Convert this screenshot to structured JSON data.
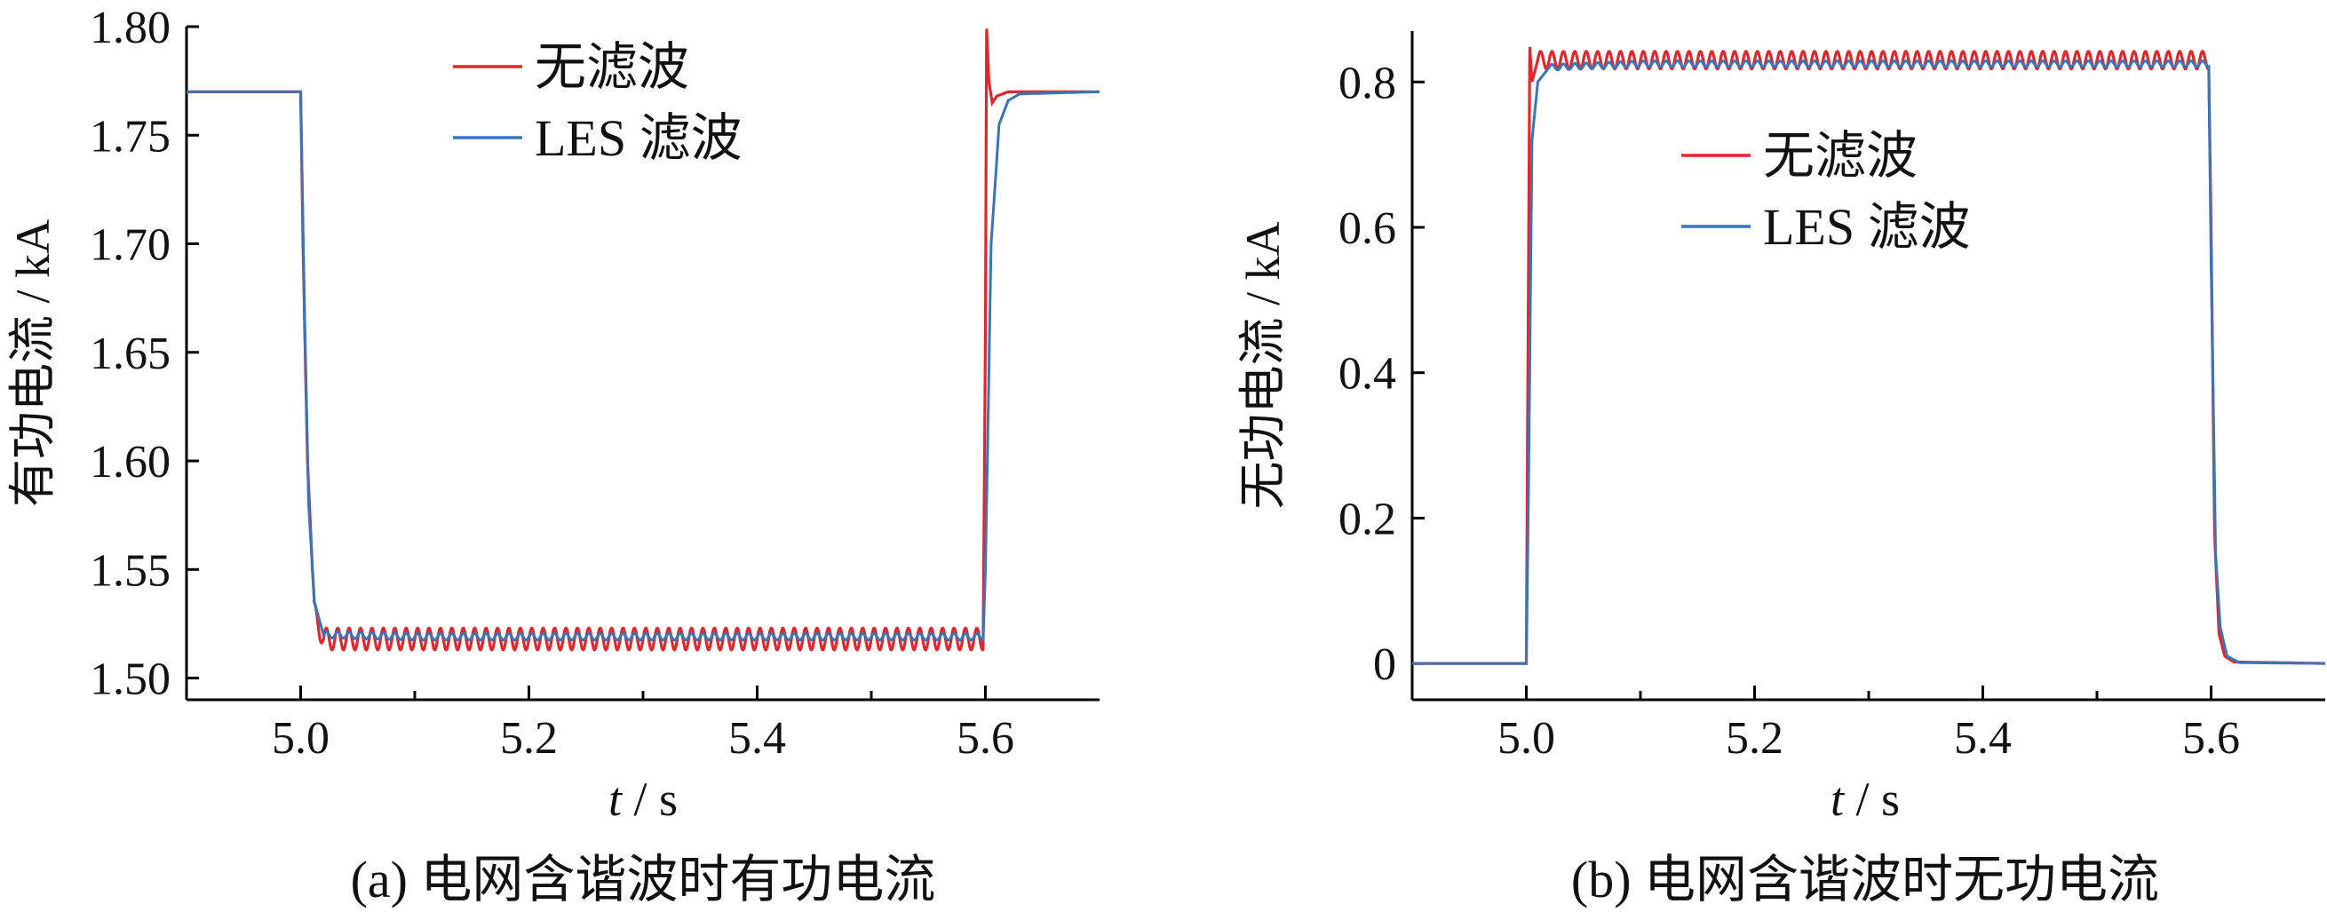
{
  "chart_data": [
    {
      "type": "line",
      "caption": "(a)  电网含谐波时有功电流",
      "xlabel_italic": "t",
      "xlabel_unit": "s",
      "ylabel": "有功电流",
      "ylabel_unit": "kA",
      "xlim": [
        4.9,
        5.7
      ],
      "ylim": [
        1.49,
        1.8
      ],
      "xticks": [
        "5.0",
        "5.2",
        "5.4",
        "5.6"
      ],
      "xtick_values": [
        5.0,
        5.2,
        5.4,
        5.6
      ],
      "yticks": [
        "1.50",
        "1.55",
        "1.60",
        "1.65",
        "1.70",
        "1.75",
        "1.80"
      ],
      "ytick_values": [
        1.5,
        1.55,
        1.6,
        1.65,
        1.7,
        1.75,
        1.8
      ],
      "legend_position": "top-center",
      "series": [
        {
          "name": "无滤波",
          "color": "#e3262b",
          "x": [
            4.9,
            5.0,
            5.002,
            5.006,
            5.012,
            5.02,
            5.1,
            5.2,
            5.3,
            5.4,
            5.5,
            5.598,
            5.6,
            5.601,
            5.603,
            5.606,
            5.61,
            5.62,
            5.7
          ],
          "y": [
            1.77,
            1.77,
            1.7,
            1.6,
            1.53,
            1.518,
            1.518,
            1.518,
            1.518,
            1.518,
            1.518,
            1.518,
            1.66,
            1.8,
            1.775,
            1.765,
            1.768,
            1.77,
            1.77
          ],
          "ripple_amplitude": 0.005,
          "ripple_range": [
            5.01,
            5.6
          ]
        },
        {
          "name": "LES 滤波",
          "color": "#3a75b8",
          "x": [
            4.9,
            5.0,
            5.003,
            5.007,
            5.012,
            5.02,
            5.1,
            5.2,
            5.3,
            5.4,
            5.5,
            5.598,
            5.6,
            5.605,
            5.612,
            5.62,
            5.63,
            5.7
          ],
          "y": [
            1.77,
            1.77,
            1.68,
            1.58,
            1.535,
            1.52,
            1.519,
            1.519,
            1.519,
            1.519,
            1.519,
            1.519,
            1.55,
            1.7,
            1.755,
            1.766,
            1.769,
            1.77
          ],
          "ripple_amplitude": 0.0015,
          "ripple_range": [
            5.02,
            5.6
          ]
        }
      ]
    },
    {
      "type": "line",
      "caption": "(b)  电网含谐波时无功电流",
      "xlabel_italic": "t",
      "xlabel_unit": "s",
      "ylabel": "无功电流",
      "ylabel_unit": "kA",
      "xlim": [
        4.9,
        5.7
      ],
      "ylim": [
        -0.05,
        0.87
      ],
      "xticks": [
        "5.0",
        "5.2",
        "5.4",
        "5.6"
      ],
      "xtick_values": [
        5.0,
        5.2,
        5.4,
        5.6
      ],
      "yticks": [
        "0",
        "0.2",
        "0.4",
        "0.6",
        "0.8"
      ],
      "ytick_values": [
        0,
        0.2,
        0.4,
        0.6,
        0.8
      ],
      "legend_position": "upper-middle",
      "series": [
        {
          "name": "无滤波",
          "color": "#e3262b",
          "x": [
            4.9,
            5.0,
            5.001,
            5.003,
            5.005,
            5.01,
            5.1,
            5.2,
            5.3,
            5.4,
            5.5,
            5.598,
            5.6,
            5.603,
            5.607,
            5.612,
            5.62,
            5.7
          ],
          "y": [
            0,
            0,
            0.3,
            0.85,
            0.8,
            0.83,
            0.83,
            0.83,
            0.83,
            0.83,
            0.83,
            0.83,
            0.6,
            0.18,
            0.04,
            0.01,
            0.002,
            0
          ],
          "ripple_amplitude": 0.012,
          "ripple_range": [
            5.01,
            5.6
          ]
        },
        {
          "name": "LES 滤波",
          "color": "#3a75b8",
          "x": [
            4.9,
            5.0,
            5.002,
            5.005,
            5.01,
            5.02,
            5.1,
            5.2,
            5.3,
            5.4,
            5.5,
            5.598,
            5.6,
            5.604,
            5.608,
            5.614,
            5.625,
            5.7
          ],
          "y": [
            0,
            0,
            0.25,
            0.72,
            0.8,
            0.82,
            0.825,
            0.825,
            0.825,
            0.825,
            0.825,
            0.825,
            0.55,
            0.15,
            0.05,
            0.01,
            0.001,
            0
          ],
          "ripple_amplitude": 0.004,
          "ripple_range": [
            5.02,
            5.6
          ]
        }
      ]
    }
  ]
}
